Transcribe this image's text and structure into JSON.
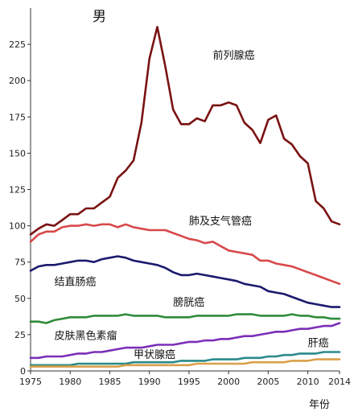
{
  "chart_data": {
    "type": "line",
    "title": "男",
    "xlabel": "年份",
    "ylabel": "",
    "xlim": [
      1975,
      2014
    ],
    "ylim": [
      0,
      250
    ],
    "xticks": [
      1975,
      1980,
      1985,
      1990,
      1995,
      2000,
      2005,
      2010,
      2014
    ],
    "yticks": [
      0,
      25,
      50,
      75,
      100,
      125,
      150,
      175,
      200,
      225
    ],
    "grid": false,
    "legend": "none",
    "x": [
      1975,
      1976,
      1977,
      1978,
      1979,
      1980,
      1981,
      1982,
      1983,
      1984,
      1985,
      1986,
      1987,
      1988,
      1989,
      1990,
      1991,
      1992,
      1993,
      1994,
      1995,
      1996,
      1997,
      1998,
      1999,
      2000,
      2001,
      2002,
      2003,
      2004,
      2005,
      2006,
      2007,
      2008,
      2009,
      2010,
      2011,
      2012,
      2013,
      2014
    ],
    "series": [
      {
        "name": "前列腺癌",
        "color": "#7a1212",
        "label_at": [
          1998,
          215
        ],
        "values": [
          94,
          98,
          101,
          100,
          104,
          108,
          108,
          112,
          112,
          116,
          120,
          133,
          138,
          145,
          171,
          215,
          237,
          210,
          180,
          170,
          170,
          174,
          172,
          183,
          183,
          185,
          183,
          171,
          166,
          157,
          173,
          176,
          160,
          156,
          148,
          143,
          117,
          112,
          103,
          101
        ]
      },
      {
        "name": "肺及支气管癌",
        "color": "#d8484a",
        "label_at": [
          1995,
          101
        ],
        "values": [
          89,
          94,
          96,
          96,
          99,
          100,
          100,
          101,
          100,
          101,
          101,
          99,
          101,
          99,
          98,
          97,
          97,
          97,
          95,
          93,
          91,
          90,
          88,
          89,
          86,
          83,
          82,
          81,
          80,
          76,
          76,
          74,
          73,
          72,
          70,
          68,
          66,
          64,
          62,
          60
        ]
      },
      {
        "name": "结直肠癌",
        "color": "#1a1a6e",
        "label_at": [
          1978,
          59
        ],
        "values": [
          69,
          72,
          73,
          73,
          74,
          75,
          76,
          76,
          75,
          77,
          78,
          79,
          78,
          76,
          75,
          74,
          73,
          71,
          68,
          66,
          66,
          67,
          66,
          65,
          64,
          63,
          62,
          60,
          59,
          58,
          55,
          54,
          53,
          51,
          49,
          47,
          46,
          45,
          44,
          44
        ]
      },
      {
        "name": "膀胱癌",
        "color": "#2e8b3a",
        "label_at": [
          1993,
          45
        ],
        "values": [
          34,
          34,
          33,
          35,
          36,
          37,
          37,
          37,
          38,
          38,
          38,
          38,
          39,
          38,
          38,
          38,
          38,
          37,
          37,
          37,
          37,
          38,
          38,
          38,
          38,
          38,
          39,
          39,
          39,
          38,
          38,
          38,
          38,
          39,
          38,
          38,
          37,
          37,
          36,
          36
        ]
      },
      {
        "name": "皮肤黑色素瘤",
        "color": "#7b2fb8",
        "label_at": [
          1978,
          22
        ],
        "values": [
          9,
          9,
          10,
          10,
          10,
          11,
          12,
          12,
          13,
          13,
          14,
          15,
          16,
          16,
          16,
          17,
          18,
          18,
          18,
          19,
          20,
          20,
          21,
          21,
          22,
          22,
          23,
          24,
          24,
          25,
          26,
          27,
          27,
          28,
          29,
          29,
          30,
          31,
          31,
          33
        ]
      },
      {
        "name": "甲状腺癌",
        "color": "#2a8a8a",
        "label_at": [
          1988,
          9
        ],
        "values": [
          4,
          4,
          4,
          4,
          4,
          4,
          5,
          5,
          5,
          5,
          5,
          5,
          5,
          6,
          6,
          6,
          6,
          6,
          6,
          7,
          7,
          7,
          7,
          8,
          8,
          8,
          8,
          9,
          9,
          9,
          10,
          10,
          11,
          11,
          12,
          12,
          12,
          13,
          13,
          13
        ]
      },
      {
        "name": "肝癌",
        "color": "#d9a04a",
        "label_at": [
          2010,
          17
        ],
        "values": [
          3,
          3,
          3,
          3,
          3,
          3,
          3,
          3,
          3,
          3,
          3,
          3,
          4,
          4,
          4,
          4,
          4,
          4,
          4,
          4,
          4,
          5,
          5,
          5,
          5,
          5,
          5,
          5,
          6,
          6,
          6,
          6,
          6,
          7,
          7,
          7,
          8,
          8,
          8,
          8
        ]
      }
    ]
  }
}
